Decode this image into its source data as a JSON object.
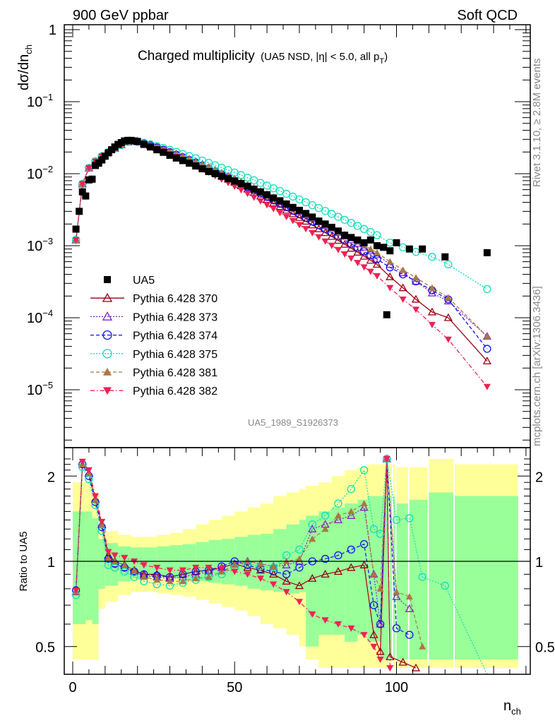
{
  "header": {
    "left_label": "900 GeV ppbar",
    "right_label": "Soft QCD"
  },
  "side_labels": {
    "rivet": "Rivet 3.1.10, ≥ 2.8M events",
    "mcplots": "mcplots.cern.ch [arXiv:1306.3436]"
  },
  "chart_data": [
    {
      "type": "scatter",
      "panel": "main",
      "title": "Charged multiplicity",
      "subtitle": "(UA5 NSD, |η| < 5.0, all p",
      "subtitle_sub": "T",
      "subtitle_end": ")",
      "ylabel": "dσ/dn",
      "ylabel_sub": "ch",
      "xlabel": "n",
      "xlabel_sub": "ch",
      "yscale": "log",
      "ylim": [
        1.6e-06,
        1
      ],
      "xlim": [
        -2.5,
        141
      ],
      "y_ticks": [
        {
          "v": 1,
          "label": "1",
          "exp": ""
        },
        {
          "v": 0.1,
          "label": "10",
          "exp": "−1"
        },
        {
          "v": 0.01,
          "label": "10",
          "exp": "−2"
        },
        {
          "v": 0.001,
          "label": "10",
          "exp": "−3"
        },
        {
          "v": 0.0001,
          "label": "10",
          "exp": "−4"
        },
        {
          "v": 1e-05,
          "label": "10",
          "exp": "−5"
        }
      ],
      "analysis_id": "UA5_1989_S1926373",
      "legend_position": "bottom-left",
      "legend": [
        {
          "name": "UA5",
          "key": "ua5"
        },
        {
          "name": "Pythia 6.428 370",
          "key": "p370"
        },
        {
          "name": "Pythia 6.428 373",
          "key": "p373"
        },
        {
          "name": "Pythia 6.428 374",
          "key": "p374"
        },
        {
          "name": "Pythia 6.428 375",
          "key": "p375"
        },
        {
          "name": "Pythia 6.428 381",
          "key": "p381"
        },
        {
          "name": "Pythia 6.428 382",
          "key": "p382"
        }
      ],
      "styles": {
        "ua5": {
          "color": "#000000",
          "marker": "square-filled",
          "line": "none"
        },
        "p370": {
          "color": "#990011",
          "marker": "triangle-open",
          "line": "solid"
        },
        "p373": {
          "color": "#8822cc",
          "marker": "triangle-open",
          "line": "dotted"
        },
        "p374": {
          "color": "#1111ee",
          "marker": "circle-open",
          "line": "dashed"
        },
        "p375": {
          "color": "#11ddbb",
          "marker": "circle-open",
          "line": "dotted"
        },
        "p381": {
          "color": "#aa7744",
          "marker": "triangle-filled",
          "line": "dashed"
        },
        "p382": {
          "color": "#ee2255",
          "marker": "triangle-down-filled",
          "line": "dashdot"
        }
      },
      "ua5": {
        "x": [
          1,
          2,
          3,
          4,
          5,
          6,
          7,
          8,
          9,
          10,
          11,
          12,
          13,
          14,
          15,
          16,
          17,
          18,
          19,
          20,
          22,
          24,
          26,
          28,
          30,
          32,
          34,
          36,
          38,
          40,
          42,
          44,
          46,
          48,
          50,
          52,
          54,
          56,
          58,
          60,
          62,
          64,
          66,
          68,
          70,
          72,
          74,
          76,
          78,
          80,
          82,
          84,
          86,
          88,
          90,
          92,
          94,
          96,
          98,
          100,
          104,
          108,
          115,
          128
        ],
        "y": [
          0.0017,
          0.003,
          0.0056,
          0.0049,
          0.0082,
          0.0084,
          0.013,
          0.014,
          0.0155,
          0.0175,
          0.0195,
          0.0215,
          0.0235,
          0.0255,
          0.027,
          0.0285,
          0.029,
          0.029,
          0.0285,
          0.028,
          0.0255,
          0.0235,
          0.0215,
          0.0198,
          0.018,
          0.0165,
          0.0152,
          0.014,
          0.0128,
          0.0117,
          0.0107,
          0.01,
          0.0092,
          0.0085,
          0.0079,
          0.0073,
          0.0067,
          0.0061,
          0.0056,
          0.0051,
          0.0046,
          0.0042,
          0.0038,
          0.0034,
          0.0031,
          0.0028,
          0.0025,
          0.0022,
          0.002,
          0.0018,
          0.0016,
          0.0014,
          0.0013,
          0.0012,
          0.0011,
          0.0012,
          0.001,
          0.00095,
          0.00085,
          0.0011,
          0.0009,
          0.0009,
          0.0007,
          0.0008
        ]
      },
      "ua5_outlier": {
        "x": [
          97
        ],
        "y": [
          0.00011
        ]
      },
      "mc_peak": {
        "x_peak": 18,
        "y_peak": 0.029,
        "y_at_1": 0.0012,
        "y_at_3": 0.0072
      },
      "mc_tail_ends": {
        "p370": {
          "x": [
            94,
            98,
            102,
            106,
            111,
            116,
            128
          ],
          "y": [
            0.00055,
            0.00037,
            0.00026,
            0.00018,
            0.00012,
            0.0001,
            2.5e-05
          ]
        },
        "p373": {
          "x": [
            94,
            98,
            102,
            106,
            111,
            116,
            128
          ],
          "y": [
            0.00075,
            0.00055,
            0.00042,
            0.00032,
            0.00022,
            0.00017,
            5.5e-05
          ]
        },
        "p374": {
          "x": [
            94,
            98,
            102,
            106,
            111,
            116,
            128
          ],
          "y": [
            0.00065,
            0.0005,
            0.0004,
            0.00032,
            0.00024,
            0.00018,
            3.7e-05
          ]
        },
        "p375": {
          "x": [
            94,
            98,
            102,
            106,
            111,
            116,
            128
          ],
          "y": [
            0.0014,
            0.0011,
            0.00095,
            0.00082,
            0.0007,
            0.00055,
            0.00025
          ]
        },
        "p381": {
          "x": [
            94,
            98,
            102,
            106,
            111,
            116,
            128
          ],
          "y": [
            0.0008,
            0.0006,
            0.00046,
            0.00036,
            0.00026,
            0.00019,
            5.5e-05
          ]
        },
        "p382": {
          "x": [
            94,
            98,
            102,
            106,
            111,
            116,
            128
          ],
          "y": [
            0.00038,
            0.00026,
            0.00018,
            0.00013,
            8e-05,
            5e-05,
            1.1e-05
          ]
        }
      }
    },
    {
      "type": "scatter",
      "panel": "ratio",
      "ylabel": "Ratio to UA5",
      "yscale": "log",
      "ylim": [
        0.42,
        2.35
      ],
      "y_ticks": [
        {
          "v": 2,
          "label": "2"
        },
        {
          "v": 1,
          "label": "1"
        },
        {
          "v": 0.5,
          "label": "0.5"
        }
      ],
      "x_ticks": [
        {
          "v": 0,
          "label": "0"
        },
        {
          "v": 50,
          "label": "50"
        },
        {
          "v": 100,
          "label": "100"
        }
      ],
      "reference_line": 1,
      "bands": {
        "x_edges": [
          0,
          4,
          6,
          8,
          10,
          14,
          18,
          22,
          26,
          30,
          34,
          38,
          42,
          46,
          50,
          54,
          58,
          62,
          66,
          70,
          72,
          76,
          80,
          84,
          88,
          91,
          95,
          98,
          99,
          100,
          104,
          110,
          118,
          138
        ],
        "stat_lo": [
          0.6,
          0.62,
          0.6,
          0.8,
          0.82,
          0.85,
          0.87,
          0.88,
          0.88,
          0.87,
          0.86,
          0.85,
          0.84,
          0.83,
          0.82,
          0.8,
          0.79,
          0.78,
          0.77,
          0.78,
          0.5,
          0.55,
          0.55,
          0.52,
          0.55,
          0.52,
          0.45,
          0.45,
          0.45,
          0.45,
          0.45,
          0.45,
          0.45
        ],
        "stat_hi": [
          1.5,
          1.5,
          1.42,
          1.2,
          1.16,
          1.13,
          1.12,
          1.12,
          1.13,
          1.14,
          1.15,
          1.17,
          1.19,
          1.2,
          1.22,
          1.24,
          1.25,
          1.3,
          1.35,
          1.4,
          1.45,
          1.5,
          1.55,
          1.6,
          1.65,
          1.7,
          1.7,
          1.7,
          1.7,
          1.6,
          1.65,
          1.75,
          1.7
        ],
        "sys_lo": [
          0.45,
          0.45,
          0.45,
          0.68,
          0.72,
          0.76,
          0.78,
          0.78,
          0.77,
          0.76,
          0.75,
          0.73,
          0.71,
          0.69,
          0.67,
          0.64,
          0.6,
          0.58,
          0.55,
          0.5,
          0.45,
          0.42,
          0.42,
          0.42,
          0.42,
          0.42,
          0.42,
          0.42,
          0.42,
          0.42,
          0.42,
          0.42,
          0.42
        ],
        "sys_hi": [
          1.9,
          1.9,
          1.75,
          1.35,
          1.28,
          1.24,
          1.22,
          1.22,
          1.24,
          1.26,
          1.3,
          1.35,
          1.4,
          1.45,
          1.5,
          1.55,
          1.6,
          1.7,
          1.75,
          1.8,
          1.85,
          1.9,
          2.0,
          2.1,
          2.15,
          2.2,
          2.2,
          2.2,
          2.2,
          2.15,
          2.15,
          2.3,
          2.2
        ],
        "stat_color": "#99ff99",
        "sys_color": "#ffff99"
      },
      "ratio_points": {
        "p370": {
          "x": [
            1,
            3,
            5,
            7,
            9,
            11,
            13,
            16,
            19,
            22,
            26,
            30,
            34,
            38,
            42,
            46,
            50,
            54,
            58,
            62,
            66,
            70,
            74,
            78,
            82,
            86,
            90,
            93,
            95,
            97,
            98,
            102,
            106
          ],
          "y": [
            0.78,
            2.2,
            2.05,
            1.65,
            1.35,
            1.05,
            1.0,
            0.97,
            0.93,
            0.9,
            0.9,
            0.88,
            0.9,
            0.92,
            0.93,
            0.95,
            0.98,
            0.95,
            0.93,
            0.9,
            0.85,
            0.82,
            0.87,
            0.9,
            0.92,
            0.95,
            0.97,
            0.55,
            0.48,
            2.3,
            0.46,
            0.44,
            0.42
          ]
        },
        "p373": {
          "x": [
            1,
            3,
            5,
            7,
            9,
            11,
            13,
            16,
            19,
            22,
            26,
            30,
            34,
            38,
            42,
            46,
            50,
            54,
            58,
            62,
            66,
            70,
            74,
            78,
            82,
            86,
            90,
            93,
            95,
            97,
            100,
            104
          ],
          "y": [
            0.78,
            2.2,
            2.05,
            1.65,
            1.35,
            1.02,
            0.98,
            0.95,
            0.92,
            0.89,
            0.88,
            0.87,
            0.88,
            0.9,
            0.92,
            0.95,
            0.98,
            1.0,
            0.98,
            0.96,
            0.97,
            1.0,
            1.3,
            1.35,
            1.4,
            1.45,
            1.55,
            0.9,
            0.6,
            2.3,
            0.75,
            0.68
          ]
        },
        "p374": {
          "x": [
            1,
            3,
            5,
            7,
            9,
            11,
            13,
            16,
            19,
            22,
            26,
            30,
            34,
            38,
            42,
            46,
            50,
            54,
            58,
            62,
            66,
            70,
            74,
            78,
            82,
            86,
            90,
            93,
            95,
            97,
            100,
            104
          ],
          "y": [
            0.79,
            2.2,
            2.0,
            1.62,
            1.32,
            1.02,
            0.98,
            0.95,
            0.92,
            0.9,
            0.89,
            0.88,
            0.9,
            0.92,
            0.93,
            0.96,
            1.0,
            0.97,
            0.94,
            0.92,
            0.9,
            0.95,
            1.0,
            1.02,
            1.05,
            1.1,
            1.15,
            0.7,
            0.6,
            2.3,
            0.58,
            0.55
          ]
        },
        "p375": {
          "x": [
            1,
            3,
            5,
            7,
            9,
            11,
            13,
            16,
            19,
            22,
            26,
            30,
            34,
            38,
            42,
            46,
            50,
            54,
            58,
            62,
            66,
            70,
            74,
            78,
            82,
            86,
            90,
            93,
            95,
            97,
            100,
            104,
            108,
            115,
            128
          ],
          "y": [
            0.76,
            2.15,
            1.95,
            1.58,
            1.28,
            0.97,
            0.95,
            0.92,
            0.88,
            0.85,
            0.83,
            0.82,
            0.84,
            0.86,
            0.88,
            0.9,
            0.95,
            0.98,
            0.96,
            0.95,
            1.05,
            1.1,
            1.35,
            1.45,
            1.6,
            1.8,
            2.1,
            1.3,
            1.25,
            2.3,
            1.4,
            1.42,
            0.88,
            0.82,
            0.35
          ]
        },
        "p381": {
          "x": [
            1,
            3,
            5,
            7,
            9,
            11,
            13,
            16,
            19,
            22,
            26,
            30,
            34,
            38,
            42,
            46,
            50,
            54,
            58,
            62,
            66,
            70,
            74,
            78,
            82,
            86,
            90,
            93,
            95,
            97,
            100,
            104,
            108
          ],
          "y": [
            0.78,
            2.2,
            2.05,
            1.65,
            1.35,
            1.02,
            1.0,
            0.97,
            0.93,
            0.88,
            0.86,
            0.85,
            0.85,
            0.87,
            0.88,
            0.92,
            0.97,
            1.0,
            0.98,
            0.96,
            1.0,
            1.02,
            1.2,
            1.3,
            1.45,
            1.5,
            1.6,
            0.9,
            0.8,
            2.3,
            0.78,
            0.75,
            0.5
          ]
        },
        "p382": {
          "x": [
            1,
            3,
            5,
            7,
            9,
            11,
            13,
            16,
            19,
            22,
            26,
            30,
            34,
            38,
            42,
            46,
            50,
            54,
            58,
            62,
            66,
            70,
            74,
            78,
            82,
            86,
            90,
            93,
            95,
            97,
            98
          ],
          "y": [
            0.79,
            2.25,
            2.1,
            1.7,
            1.38,
            1.08,
            1.05,
            1.03,
            1.0,
            0.97,
            0.95,
            0.93,
            0.93,
            0.95,
            0.95,
            0.94,
            0.92,
            0.9,
            0.87,
            0.83,
            0.78,
            0.72,
            0.65,
            0.62,
            0.6,
            0.58,
            0.55,
            0.5,
            0.45,
            2.3,
            0.42
          ]
        }
      }
    }
  ]
}
